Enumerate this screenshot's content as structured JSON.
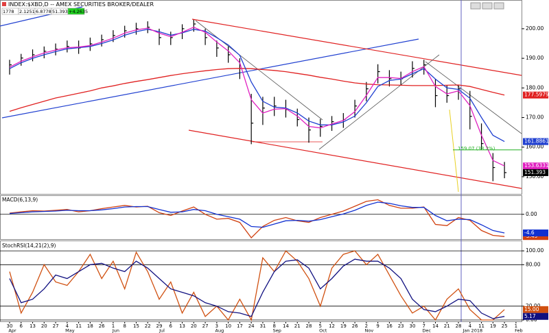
{
  "chart_data": [
    {
      "type": "ohlc",
      "title": "INDEX:$XBD,D -- AMEX SECURITIES BROKER/DEALER",
      "quote": [
        "1778",
        "2.1251",
        "6.8778",
        "51.393",
        "+4.2635"
      ],
      "ylim": [
        144.2,
        209.7
      ],
      "yticks": [
        {
          "value": 150,
          "label": "150.00"
        },
        {
          "value": 160,
          "label": "160.00"
        },
        {
          "value": 170,
          "label": "170.00"
        },
        {
          "value": 180,
          "label": "180.00"
        },
        {
          "value": 190,
          "label": "190.00"
        },
        {
          "value": 200,
          "label": "200.00"
        }
      ],
      "grid": false,
      "color": "#000000",
      "high": [
        189.5,
        191.5,
        193,
        194,
        195,
        196,
        196,
        197,
        198,
        199.5,
        201,
        202,
        202.5,
        200,
        199,
        201.5,
        203,
        200,
        196,
        194,
        190,
        178,
        177,
        177,
        176,
        173,
        170,
        169.5,
        170.5,
        171.5,
        176,
        182,
        188,
        186,
        185.5,
        189,
        189.5,
        183,
        181,
        181,
        179,
        168,
        158,
        155,
        null
      ],
      "low": [
        184.5,
        187.5,
        189,
        190,
        191,
        192,
        191.5,
        192.5,
        194,
        195.5,
        197,
        198,
        198.5,
        194.5,
        194.5,
        196.5,
        199,
        194.5,
        190.5,
        188.5,
        183,
        161,
        167.5,
        170.5,
        170,
        167,
        161.5,
        163.5,
        165.5,
        166.5,
        170,
        175.5,
        181.5,
        180.5,
        181,
        183.5,
        184.5,
        173.5,
        175,
        176,
        166,
        159,
        148.5,
        149.5,
        null
      ],
      "close": [
        187.8,
        190.1,
        191.2,
        192.4,
        193.1,
        194.0,
        193.5,
        194.9,
        196.3,
        197.7,
        199.3,
        200.0,
        200.5,
        197.0,
        197.0,
        200.0,
        201.6,
        197.0,
        193.5,
        191.2,
        186.6,
        168.1,
        173.2,
        173.9,
        172.7,
        169.3,
        165.8,
        167.0,
        168.6,
        169.3,
        173.9,
        179.7,
        185.5,
        183.1,
        183.1,
        186.6,
        187.8,
        177.4,
        177.4,
        179.7,
        170.4,
        161.2,
        153.1,
        151.393,
        null
      ],
      "series": [
        {
          "color": "#e02020",
          "values": [
            172.1,
            173.3,
            174.4,
            175.5,
            176.6,
            177.4,
            178.2,
            179.0,
            180.0,
            180.7,
            181.5,
            182.2,
            182.8,
            183.5,
            184.2,
            184.8,
            185.3,
            185.8,
            186.2,
            186.5,
            186.6,
            186.5,
            186.2,
            185.9,
            185.5,
            184.9,
            184.3,
            183.6,
            183.0,
            182.3,
            181.7,
            181.3,
            181.1,
            181.0,
            180.9,
            180.8,
            180.8,
            180.8,
            180.9,
            181.0,
            180.5,
            179.5,
            178.5,
            177.5979,
            null
          ]
        },
        {
          "color": "#1f3fd0",
          "values": [
            186.5,
            188.5,
            190,
            191.2,
            192.3,
            193.2,
            193.6,
            194,
            195,
            196.2,
            197.8,
            199,
            199.8,
            199,
            197.8,
            198.6,
            199.8,
            199.2,
            197,
            194.5,
            191,
            182,
            175.5,
            173.5,
            173.2,
            171.5,
            168.8,
            167.5,
            167.5,
            168.5,
            170.5,
            175,
            180.5,
            182.5,
            183,
            184.8,
            186.5,
            183,
            180,
            179.5,
            176.5,
            170,
            164,
            161.8861,
            null
          ]
        },
        {
          "color": "#e020c0",
          "values": [
            187,
            189,
            190.5,
            191.8,
            192.8,
            193.6,
            193.8,
            194.3,
            195.5,
            196.8,
            198.5,
            199.6,
            200.2,
            198.5,
            197.3,
            198.8,
            200.5,
            198.8,
            195.5,
            192.5,
            188.5,
            176,
            171.5,
            172.8,
            173,
            170.5,
            167,
            166.5,
            167.8,
            169,
            172,
            177.5,
            183.5,
            183.5,
            183.2,
            185.5,
            187.2,
            180.5,
            178,
            179,
            174,
            164,
            155.5,
            153.6331,
            null
          ]
        }
      ],
      "annotations": [
        {
          "text": "159.07 (38.2%)",
          "value": 159.07,
          "color": "#20b020"
        }
      ]
    },
    {
      "type": "line",
      "label": "MACD(6,13,9)",
      "ylim": [
        -6.3,
        4.7
      ],
      "yticks": [
        {
          "value": 0,
          "label": "0.00"
        }
      ],
      "grid": true,
      "series": [
        {
          "color": "#d04010",
          "values": [
            0.3,
            0.6,
            0.9,
            0.8,
            1.0,
            1.2,
            0.6,
            0.9,
            1.4,
            1.8,
            2.2,
            1.8,
            2.0,
            0.4,
            -0.3,
            0.8,
            1.8,
            0.0,
            -1.2,
            -1.0,
            -2.0,
            -5.8,
            -3.0,
            -1.5,
            -0.8,
            -1.6,
            -2.0,
            -0.8,
            0.0,
            0.8,
            2.0,
            3.2,
            3.6,
            2.2,
            1.5,
            1.5,
            1.8,
            -2.5,
            -2.8,
            -0.8,
            -1.5,
            -4.0,
            -5.2,
            -5.49,
            null
          ]
        },
        {
          "color": "#1030d0",
          "values": [
            0.2,
            0.4,
            0.6,
            0.7,
            0.8,
            1.0,
            0.9,
            0.9,
            1.1,
            1.4,
            1.8,
            1.9,
            1.9,
            1.2,
            0.5,
            0.6,
            1.2,
            0.9,
            0.0,
            -0.6,
            -1.2,
            -3.0,
            -3.2,
            -2.4,
            -1.6,
            -1.5,
            -1.7,
            -1.3,
            -0.6,
            0.1,
            1.0,
            2.2,
            3.0,
            2.7,
            2.1,
            1.7,
            1.7,
            -0.3,
            -1.6,
            -1.2,
            -1.3,
            -2.6,
            -4.0,
            -4.6,
            null
          ]
        }
      ]
    },
    {
      "type": "line",
      "label": "StochRSI(14,21(2),9)",
      "ylim": [
        -3,
        114
      ],
      "yticks": [
        {
          "value": 0,
          "label": "0.00"
        },
        {
          "value": 20,
          "label": "20.00"
        },
        {
          "value": 80,
          "label": "80.00"
        },
        {
          "value": 100,
          "label": "100.00"
        }
      ],
      "grid": true,
      "categories": [
        "30",
        "6",
        "13",
        "20",
        "27",
        "4",
        "11",
        "18",
        "26",
        "1",
        "8",
        "15",
        "22",
        "29",
        "6",
        "13",
        "20",
        "27",
        "3",
        "10",
        "17",
        "24",
        "31",
        "8",
        "14",
        "21",
        "28",
        "5",
        "12",
        "19",
        "26",
        "2",
        "9",
        "16",
        "23",
        "30",
        "7",
        "14",
        "21",
        "28",
        "4",
        "11",
        "19",
        "25",
        "1"
      ],
      "month_labels": [
        "Apr",
        null,
        null,
        null,
        null,
        "May",
        null,
        null,
        null,
        "Jun",
        null,
        null,
        null,
        "Jul",
        null,
        null,
        null,
        null,
        "Aug",
        null,
        null,
        null,
        null,
        "Sep",
        null,
        null,
        null,
        "Oct",
        null,
        null,
        null,
        "Nov",
        null,
        null,
        null,
        null,
        "Dec",
        null,
        null,
        null,
        "Jan 2018",
        null,
        null,
        null,
        "Feb"
      ],
      "series": [
        {
          "color": "#d05010",
          "values": [
            70,
            10,
            40,
            80,
            55,
            50,
            70,
            95,
            60,
            85,
            45,
            98,
            70,
            30,
            55,
            10,
            40,
            5,
            20,
            0,
            30,
            0,
            90,
            70,
            100,
            85,
            60,
            20,
            75,
            95,
            100,
            80,
            95,
            65,
            35,
            10,
            20,
            0,
            30,
            45,
            15,
            0,
            0,
            15,
            null
          ],
          "value_labels": [
            null,
            null,
            null,
            null,
            null,
            null,
            null,
            null,
            null,
            null,
            null,
            null,
            null,
            null,
            null,
            null,
            null,
            null,
            null,
            null,
            null,
            null,
            null,
            null,
            null,
            null,
            null,
            null,
            null,
            null,
            null,
            null,
            null,
            null,
            null,
            null,
            null,
            null,
            null,
            null,
            null,
            null,
            null,
            "15.00",
            null
          ]
        },
        {
          "color": "#101080",
          "values": [
            60,
            25,
            30,
            45,
            65,
            60,
            70,
            80,
            82,
            75,
            70,
            85,
            75,
            60,
            45,
            40,
            35,
            25,
            20,
            12,
            10,
            5,
            40,
            70,
            85,
            87,
            75,
            45,
            60,
            78,
            88,
            85,
            85,
            75,
            60,
            30,
            15,
            12,
            20,
            30,
            28,
            10,
            2,
            5.17,
            null
          ]
        }
      ]
    }
  ]
}
